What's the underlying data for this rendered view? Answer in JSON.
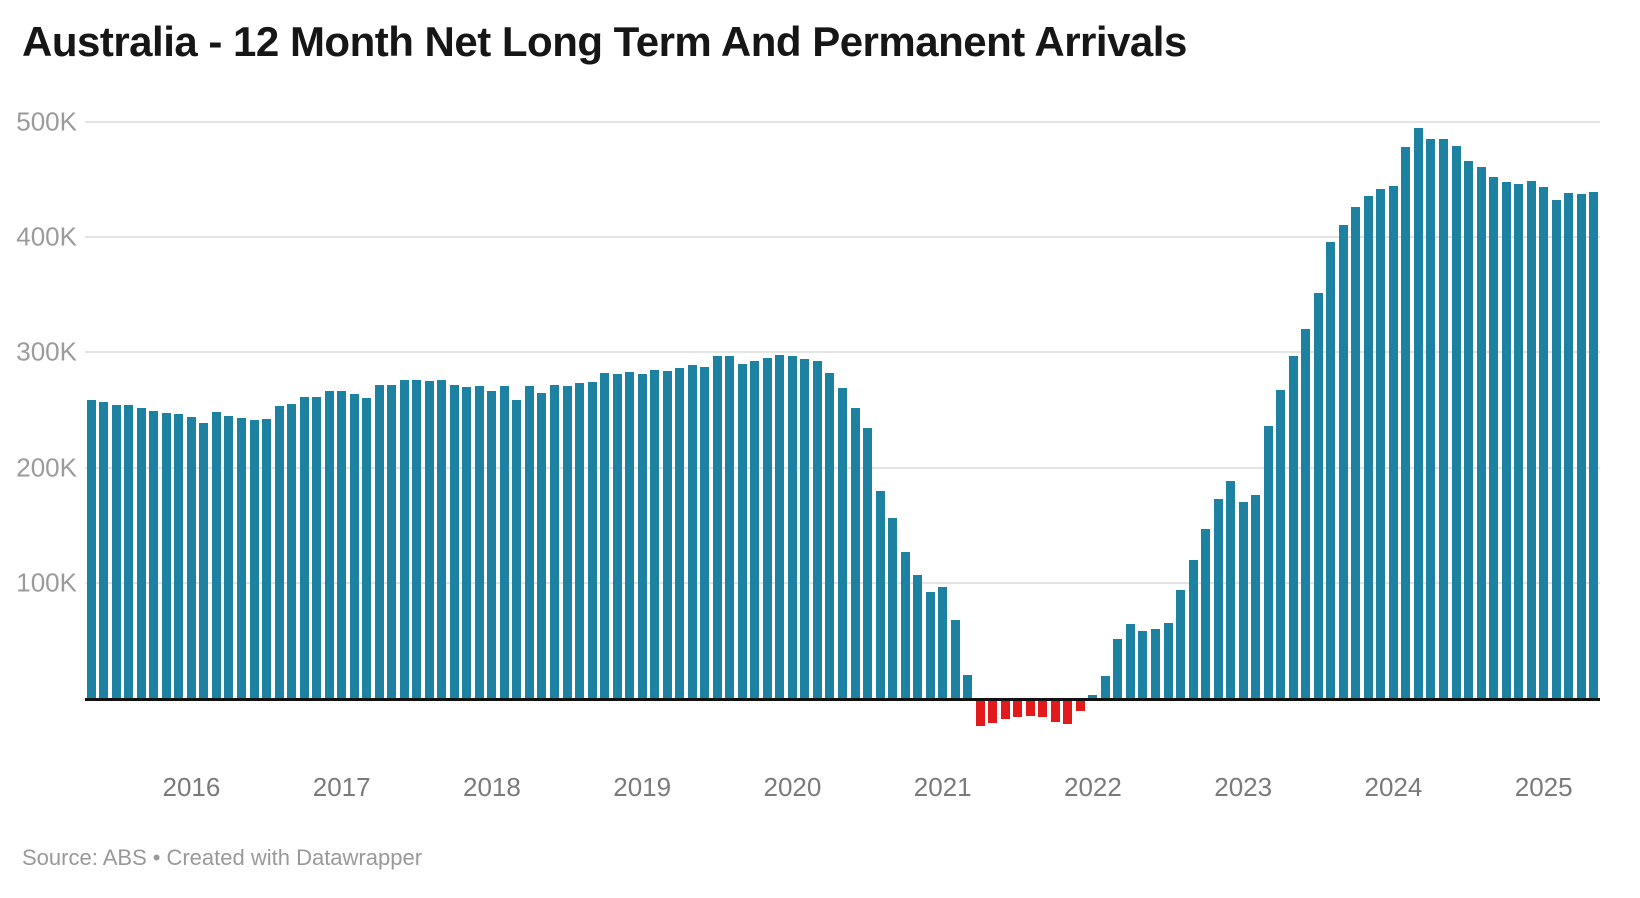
{
  "title": "Australia - 12 Month Net Long Term And Permanent Arrivals",
  "footer": {
    "source_prefix": "Source: ABS",
    "separator": "•",
    "attribution": "Created with Datawrapper"
  },
  "chart_data": {
    "type": "bar",
    "title": "Australia - 12 Month Net Long Term And Permanent Arrivals",
    "source": "ABS",
    "xlabel": "",
    "ylabel": "",
    "grid": "horizontal",
    "legend": "none",
    "ylim_thousands": [
      -30,
      510
    ],
    "y_axis_ticks": [
      {
        "label": "100K",
        "value": 100
      },
      {
        "label": "200K",
        "value": 200
      },
      {
        "label": "300K",
        "value": 300
      },
      {
        "label": "400K",
        "value": 400
      },
      {
        "label": "500K",
        "value": 500
      }
    ],
    "x_axis_year_labels": [
      "2016",
      "2017",
      "2018",
      "2019",
      "2020",
      "2021",
      "2022",
      "2023",
      "2024",
      "2025"
    ],
    "start_month": "2015-05",
    "frequency": "monthly",
    "units": "thousands of people (12-month rolling net arrivals)",
    "colors": {
      "positive": "#1d81a2",
      "negative": "#e31a1c"
    },
    "series": [
      {
        "name": "12 month net long term and permanent arrivals",
        "values_thousands": [
          259,
          257,
          254,
          254,
          252,
          249,
          247,
          246,
          244,
          239,
          248,
          245,
          243,
          241,
          242,
          253,
          255,
          261,
          261,
          266,
          266,
          264,
          260,
          272,
          272,
          276,
          276,
          275,
          276,
          272,
          270,
          271,
          266,
          271,
          259,
          271,
          265,
          272,
          271,
          273,
          274,
          282,
          281,
          283,
          281,
          285,
          284,
          286,
          289,
          287,
          297,
          297,
          290,
          292,
          295,
          298,
          297,
          294,
          292,
          282,
          269,
          252,
          234,
          180,
          156,
          127,
          107,
          92,
          96,
          68,
          20,
          -22,
          -19,
          -16,
          -14,
          -13,
          -14,
          -18,
          -20,
          -9,
          3,
          19,
          51,
          64,
          58,
          60,
          65,
          94,
          120,
          147,
          173,
          188,
          170,
          176,
          236,
          267,
          297,
          320,
          351,
          396,
          410,
          426,
          436,
          442,
          444,
          478,
          495,
          485,
          485,
          479,
          466,
          461,
          452,
          448,
          446,
          449,
          443,
          432,
          438,
          437,
          439
        ]
      }
    ]
  }
}
